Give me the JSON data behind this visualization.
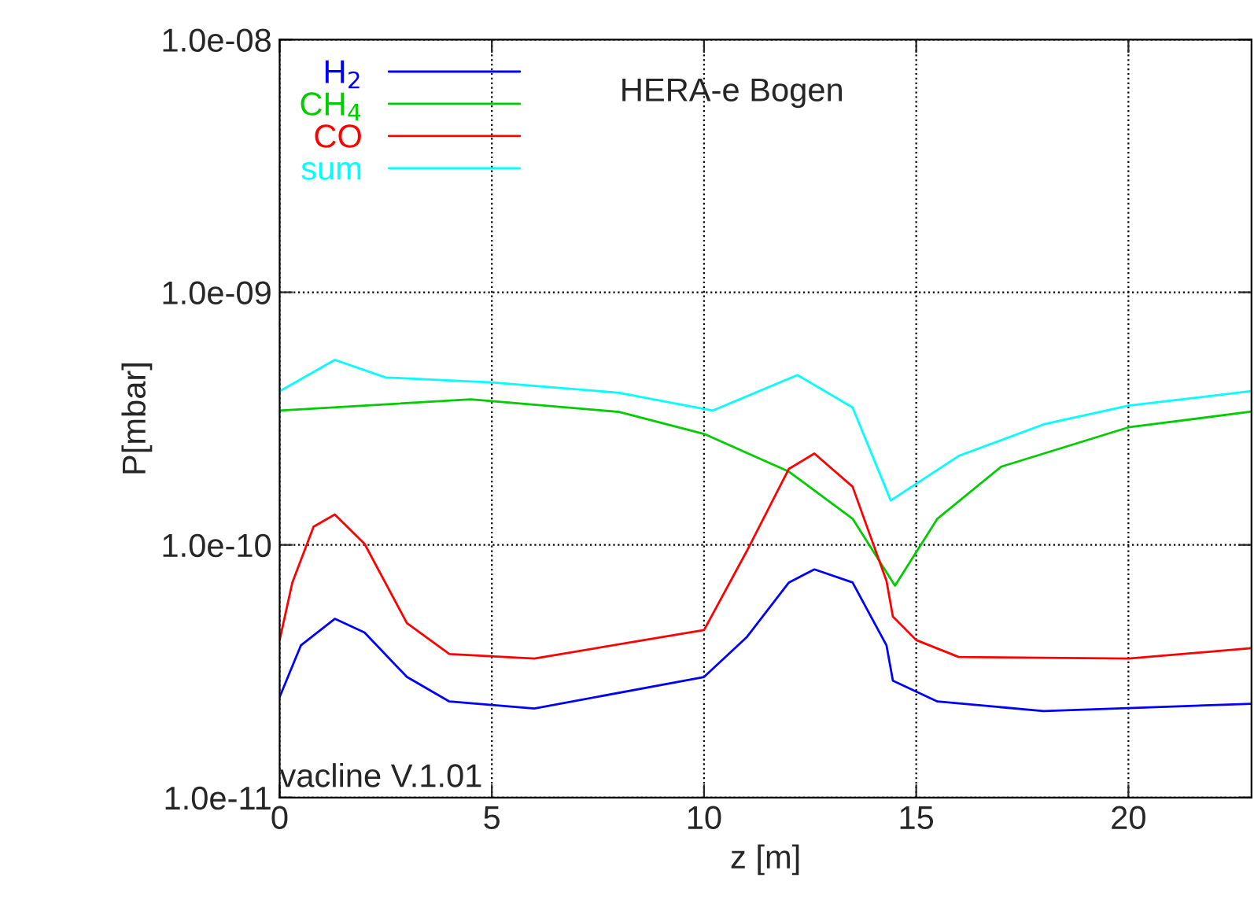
{
  "chart_data": {
    "type": "line",
    "xlabel": "z [m]",
    "ylabel": "P[mbar]",
    "log": "y",
    "grid": true,
    "legend": "top left",
    "xlim": [
      0,
      22.9
    ],
    "xticks": [
      0,
      5,
      10,
      15,
      20
    ],
    "ylim": [
      1e-11,
      1e-08
    ],
    "yticks": [
      {
        "value": 1e-11,
        "label": "1.0e-11"
      },
      {
        "value": 1e-10,
        "label": "1.0e-10"
      },
      {
        "value": 1e-09,
        "label": "1.0e-09"
      },
      {
        "value": 1e-08,
        "label": "1.0e-08"
      }
    ],
    "annotations": [
      "HERA-e Bogen",
      "vacline V.1.01"
    ],
    "series": [
      {
        "name": "H$_{2}$",
        "color": "#0000ff",
        "x": [
          0,
          0.5,
          1.3,
          2,
          3,
          4,
          6,
          10,
          11,
          12,
          12.6,
          13.5,
          14.3,
          14.45,
          15.5,
          18,
          22.9
        ],
        "values": [
          2.5e-11,
          4e-11,
          5.1e-11,
          4.5e-11,
          3e-11,
          2.4e-11,
          2.25e-11,
          3e-11,
          4.3e-11,
          7.1e-11,
          8e-11,
          7.1e-11,
          4e-11,
          2.9e-11,
          2.4e-11,
          2.2e-11,
          2.35e-11
        ]
      },
      {
        "name": "CH$_{4}$",
        "color": "#00cc00",
        "x": [
          0,
          4.5,
          8,
          10,
          12,
          13.5,
          14.5,
          15.5,
          17,
          20,
          22.9
        ],
        "values": [
          3.4e-10,
          3.77e-10,
          3.36e-10,
          2.75e-10,
          1.95e-10,
          1.27e-10,
          6.9e-11,
          1.27e-10,
          2.04e-10,
          2.92e-10,
          3.37e-10
        ]
      },
      {
        "name": "CO",
        "color": "#ff0000",
        "x": [
          0,
          0.3,
          0.8,
          1.3,
          2,
          3,
          4,
          6,
          10,
          11,
          12,
          12.6,
          13.5,
          14.3,
          14.45,
          15,
          16,
          20,
          22.9
        ],
        "values": [
          4.2e-11,
          7.1e-11,
          1.18e-10,
          1.32e-10,
          1.01e-10,
          4.9e-11,
          3.7e-11,
          3.55e-11,
          4.6e-11,
          9.4e-11,
          2e-10,
          2.3e-10,
          1.7e-10,
          7.2e-11,
          5.2e-11,
          4.2e-11,
          3.6e-11,
          3.55e-11,
          3.9e-11
        ]
      },
      {
        "name": "sum",
        "color": "#00ffff",
        "x": [
          0,
          1.3,
          2.5,
          5,
          8,
          10.2,
          12.2,
          13.5,
          14.4,
          16,
          18,
          20,
          22.9
        ],
        "values": [
          4.06e-10,
          5.4e-10,
          4.6e-10,
          4.4e-10,
          4e-10,
          3.4e-10,
          4.7e-10,
          3.5e-10,
          1.5e-10,
          2.25e-10,
          3e-10,
          3.56e-10,
          4.06e-10
        ]
      }
    ]
  }
}
